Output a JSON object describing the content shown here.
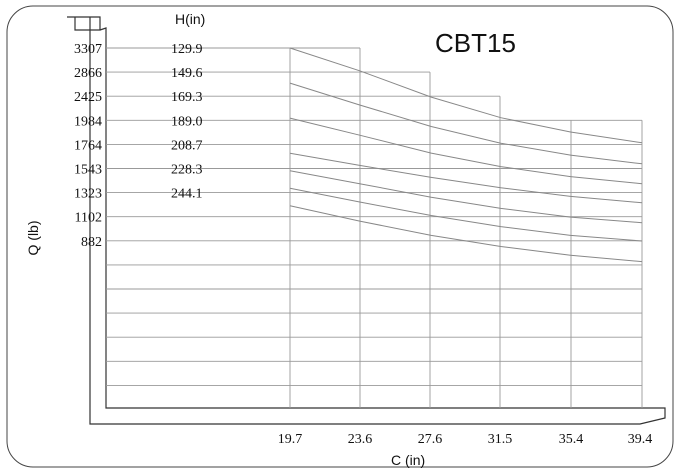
{
  "chart_data": {
    "type": "line",
    "title": "CBT15",
    "xlabel": "C (in)",
    "ylabel": "Q (lb)",
    "height_label": "H(in)",
    "x_ticks": [
      "19.7",
      "23.6",
      "27.6",
      "31.5",
      "35.4",
      "39.4"
    ],
    "y_ticks": [
      "3307",
      "2866",
      "2425",
      "1984",
      "1764",
      "1543",
      "1323",
      "1102",
      "882"
    ],
    "heights": [
      "129.9",
      "149.6",
      "169.3",
      "189.0",
      "208.7",
      "228.3",
      "244.1"
    ],
    "grid": true,
    "series": [
      {
        "name": "129.9",
        "x": [
          19.7,
          23.6,
          27.6,
          31.5,
          35.4,
          39.4
        ],
        "y": [
          3307,
          3020,
          2690,
          2430,
          2250,
          2115
        ]
      },
      {
        "name": "149.6",
        "x": [
          19.7,
          23.6,
          27.6,
          31.5,
          35.4,
          39.4
        ],
        "y": [
          2866,
          2590,
          2320,
          2110,
          1960,
          1850
        ]
      },
      {
        "name": "169.3",
        "x": [
          19.7,
          23.6,
          27.6,
          31.5,
          35.4,
          39.4
        ],
        "y": [
          2425,
          2210,
          1985,
          1815,
          1690,
          1600
        ]
      },
      {
        "name": "189.0",
        "x": [
          19.7,
          23.6,
          27.6,
          31.5,
          35.4,
          39.4
        ],
        "y": [
          1984,
          1830,
          1680,
          1550,
          1440,
          1360
        ]
      },
      {
        "name": "208.7",
        "x": [
          19.7,
          23.6,
          27.6,
          31.5,
          35.4,
          39.4
        ],
        "y": [
          1764,
          1600,
          1430,
          1290,
          1180,
          1110
        ]
      },
      {
        "name": "228.3",
        "x": [
          19.7,
          23.6,
          27.6,
          31.5,
          35.4,
          39.4
        ],
        "y": [
          1543,
          1370,
          1200,
          1060,
          950,
          880
        ]
      },
      {
        "name": "244.1",
        "x": [
          19.7,
          23.6,
          27.6,
          31.5,
          35.4,
          39.4
        ],
        "y": [
          1323,
          1130,
          950,
          810,
          700,
          620
        ]
      }
    ]
  }
}
